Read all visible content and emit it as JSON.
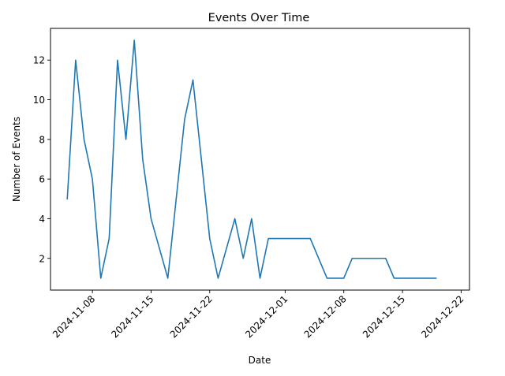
{
  "chart_data": {
    "type": "line",
    "title": "Events Over Time",
    "xlabel": "Date",
    "ylabel": "Number of Events",
    "xlim": [
      "2024-11-03",
      "2024-12-23"
    ],
    "ylim": [
      0.4,
      13.6
    ],
    "x_ticks": [
      "2024-11-08",
      "2024-11-15",
      "2024-11-22",
      "2024-12-01",
      "2024-12-08",
      "2024-12-15",
      "2024-12-22"
    ],
    "y_ticks": [
      2,
      4,
      6,
      8,
      10,
      12
    ],
    "grid": false,
    "line_color": "#1f77b4",
    "series": [
      {
        "x": [
          "2024-11-05",
          "2024-11-06",
          "2024-11-07",
          "2024-11-08",
          "2024-11-09",
          "2024-11-10",
          "2024-11-11",
          "2024-11-12",
          "2024-11-13",
          "2024-11-14",
          "2024-11-15",
          "2024-11-16",
          "2024-11-17",
          "2024-11-18",
          "2024-11-19",
          "2024-11-20",
          "2024-11-21",
          "2024-11-22",
          "2024-11-23",
          "2024-11-24",
          "2024-11-25",
          "2024-11-26",
          "2024-11-27",
          "2024-11-28",
          "2024-11-29",
          "2024-11-30",
          "2024-12-01",
          "2024-12-02",
          "2024-12-03",
          "2024-12-04",
          "2024-12-05",
          "2024-12-06",
          "2024-12-07",
          "2024-12-08",
          "2024-12-09",
          "2024-12-10",
          "2024-12-11",
          "2024-12-12",
          "2024-12-13",
          "2024-12-14",
          "2024-12-15",
          "2024-12-16",
          "2024-12-17",
          "2024-12-18",
          "2024-12-19"
        ],
        "values": [
          5,
          12,
          8,
          6,
          1,
          3,
          12,
          8,
          13,
          7,
          4,
          2.5,
          1,
          5,
          9,
          11,
          7,
          3,
          1,
          2.5,
          4,
          2,
          4,
          1,
          3,
          3,
          3,
          3,
          3,
          3,
          2,
          1,
          1,
          1,
          2,
          2,
          2,
          2,
          2,
          1,
          1,
          1,
          1,
          1,
          1
        ]
      }
    ]
  }
}
